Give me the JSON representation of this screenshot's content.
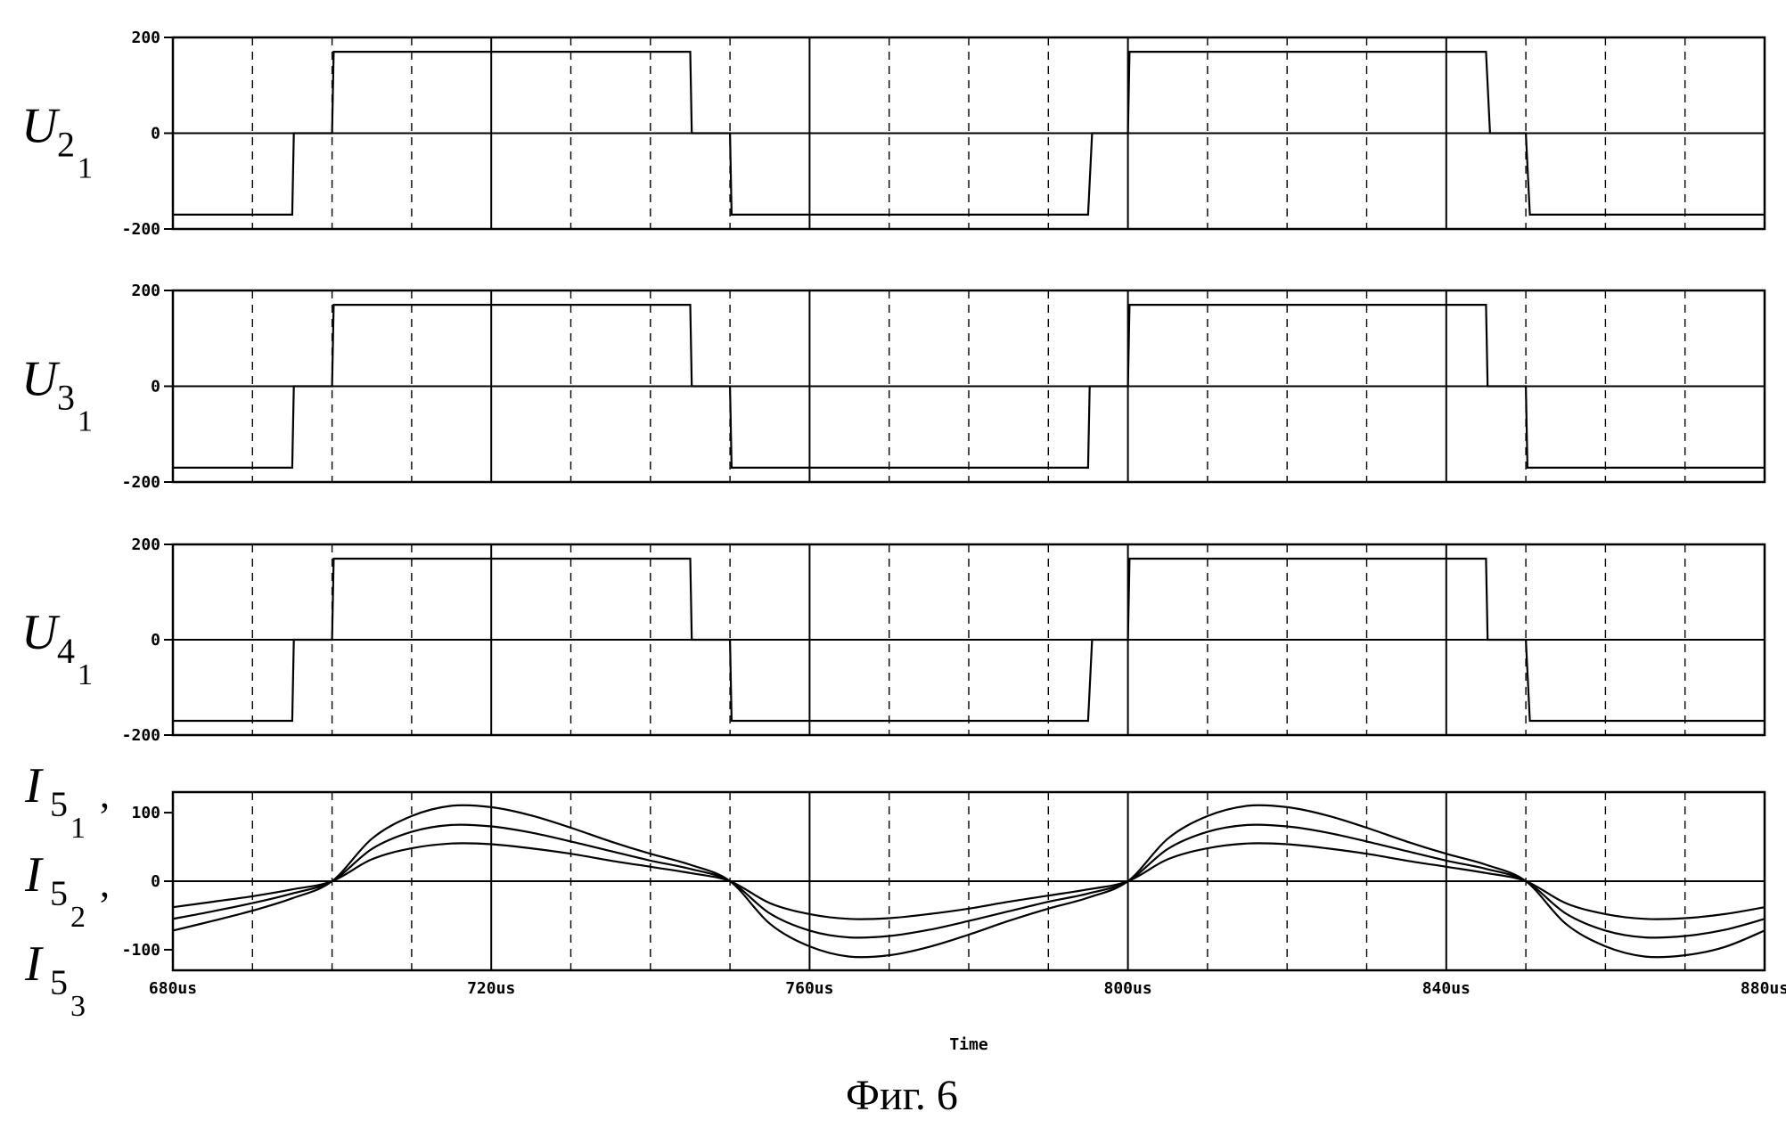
{
  "chart_data": [
    {
      "type": "line",
      "panel": "U2",
      "ylabel": "U",
      "ylabel_sub": "2",
      "ylabel_subsub": "1",
      "ylim": [
        -200,
        200
      ],
      "yticks": [
        "200",
        "0",
        "-200"
      ],
      "series": [
        {
          "x": [
            680,
            695,
            695.2,
            700,
            700.2,
            745,
            745.2,
            750,
            750.2,
            795,
            795.5,
            800,
            800.2,
            845,
            845.5,
            850,
            850.5,
            880
          ],
          "y": [
            -170,
            -170,
            0,
            0,
            170,
            170,
            0,
            0,
            -170,
            -170,
            0,
            0,
            170,
            170,
            0,
            0,
            -170,
            -170
          ]
        }
      ]
    },
    {
      "type": "line",
      "panel": "U3",
      "ylabel": "U",
      "ylabel_sub": "3",
      "ylabel_subsub": "1",
      "ylim": [
        -200,
        200
      ],
      "yticks": [
        "200",
        "0",
        "-200"
      ],
      "series": [
        {
          "x": [
            680,
            695,
            695.2,
            700,
            700.2,
            745,
            745.2,
            750,
            750.2,
            795,
            795.2,
            800,
            800.2,
            845,
            845.2,
            850,
            850.2,
            880
          ],
          "y": [
            -170,
            -170,
            0,
            0,
            170,
            170,
            0,
            0,
            -170,
            -170,
            0,
            0,
            170,
            170,
            0,
            0,
            -170,
            -170
          ]
        }
      ]
    },
    {
      "type": "line",
      "panel": "U4",
      "ylabel": "U",
      "ylabel_sub": "4",
      "ylabel_subsub": "1",
      "ylim": [
        -200,
        200
      ],
      "yticks": [
        "200",
        "0",
        "-200"
      ],
      "series": [
        {
          "x": [
            680,
            695,
            695.2,
            700,
            700.2,
            745,
            745.2,
            750,
            750.2,
            795,
            795.5,
            800,
            800.2,
            845,
            845.2,
            850,
            850.5,
            880
          ],
          "y": [
            -170,
            -170,
            0,
            0,
            170,
            170,
            0,
            0,
            -170,
            -170,
            0,
            0,
            170,
            170,
            0,
            0,
            -170,
            -170
          ]
        }
      ]
    },
    {
      "type": "line",
      "panel": "I5",
      "ylabels": [
        {
          "main": "I",
          "sub": "5",
          "subsub": "1",
          "comma": ","
        },
        {
          "main": "I",
          "sub": "5",
          "subsub": "2",
          "comma": ","
        },
        {
          "main": "I",
          "sub": "5",
          "subsub": "3",
          "comma": ""
        }
      ],
      "ylim": [
        -130,
        130
      ],
      "yticks": [
        "100",
        "0",
        "-100"
      ],
      "ytick_values": [
        100,
        0,
        -100
      ],
      "series": [
        {
          "x": [
            680,
            685,
            690,
            695,
            700,
            705,
            710,
            715,
            720,
            725,
            730,
            735,
            740,
            745,
            750,
            755,
            760,
            765,
            770,
            775,
            780,
            785,
            790,
            795,
            800,
            805,
            810,
            815,
            820,
            825,
            830,
            835,
            840,
            845,
            850,
            855,
            860,
            865,
            870,
            875,
            880
          ],
          "y": [
            -72,
            -58,
            -43,
            -25,
            0,
            62,
            95,
            110,
            108,
            96,
            78,
            58,
            40,
            24,
            0,
            -62,
            -95,
            -110,
            -108,
            -96,
            -78,
            -58,
            -40,
            -24,
            0,
            62,
            95,
            110,
            108,
            96,
            78,
            58,
            40,
            24,
            0,
            -62,
            -95,
            -110,
            -108,
            -96,
            -72
          ]
        },
        {
          "x": [
            680,
            685,
            690,
            695,
            700,
            705,
            710,
            715,
            720,
            725,
            730,
            735,
            740,
            745,
            750,
            755,
            760,
            765,
            770,
            775,
            780,
            785,
            790,
            795,
            800,
            805,
            810,
            815,
            820,
            825,
            830,
            835,
            840,
            845,
            850,
            855,
            860,
            865,
            870,
            875,
            880
          ],
          "y": [
            -55,
            -44,
            -32,
            -18,
            0,
            47,
            72,
            82,
            80,
            71,
            58,
            44,
            30,
            18,
            0,
            -47,
            -72,
            -82,
            -80,
            -71,
            -58,
            -44,
            -30,
            -18,
            0,
            47,
            72,
            82,
            80,
            71,
            58,
            44,
            30,
            18,
            0,
            -47,
            -72,
            -82,
            -80,
            -71,
            -55
          ]
        },
        {
          "x": [
            680,
            685,
            690,
            695,
            700,
            705,
            710,
            715,
            720,
            725,
            730,
            735,
            740,
            745,
            750,
            755,
            760,
            765,
            770,
            775,
            780,
            785,
            790,
            795,
            800,
            805,
            810,
            815,
            820,
            825,
            830,
            835,
            840,
            845,
            850,
            855,
            860,
            865,
            870,
            875,
            880
          ],
          "y": [
            -38,
            -30,
            -22,
            -12,
            0,
            32,
            48,
            55,
            54,
            48,
            40,
            30,
            21,
            12,
            0,
            -32,
            -48,
            -55,
            -54,
            -48,
            -40,
            -30,
            -21,
            -12,
            0,
            32,
            48,
            55,
            54,
            48,
            40,
            30,
            21,
            12,
            0,
            -32,
            -48,
            -55,
            -54,
            -48,
            -38
          ]
        }
      ]
    }
  ],
  "x_axis": {
    "xlim": [
      680,
      880
    ],
    "ticks": [
      680,
      720,
      760,
      800,
      840,
      880
    ],
    "tick_labels": [
      "680us",
      "720us",
      "760us",
      "800us",
      "840us",
      "880us"
    ],
    "minor_dashed_every": 10,
    "label": "Time"
  },
  "caption": "Фиг. 6"
}
